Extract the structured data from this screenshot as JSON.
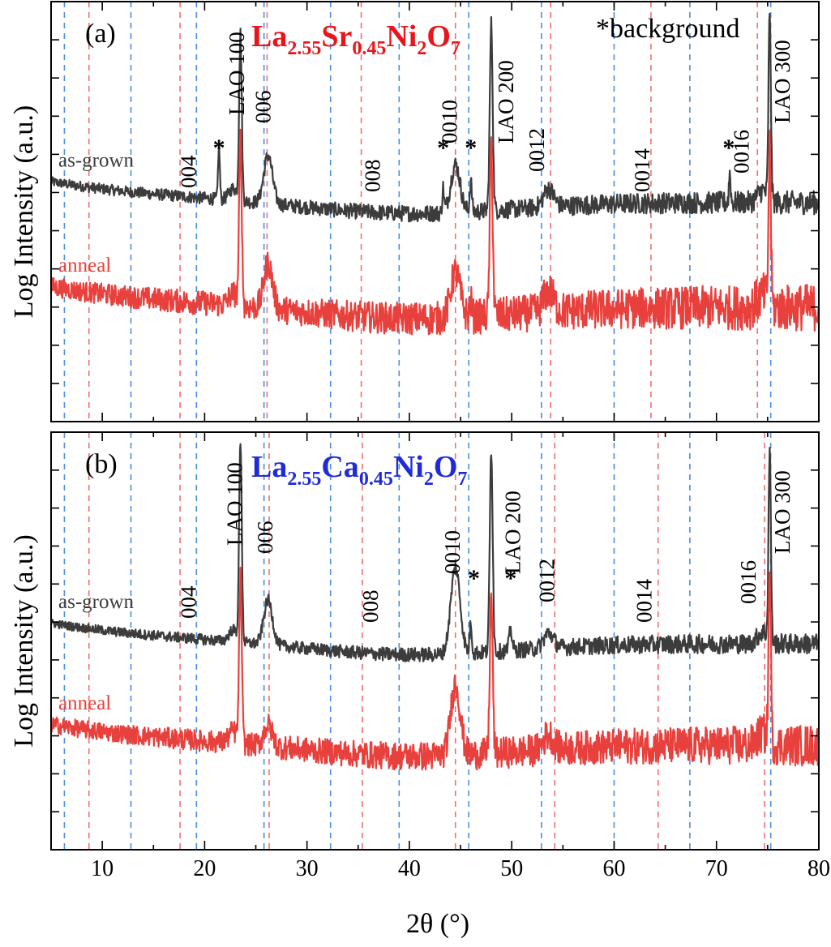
{
  "figure": {
    "xlabel": "2θ (°)",
    "xticks": [
      "10",
      "20",
      "30",
      "40",
      "50",
      "60",
      "70",
      "80"
    ]
  },
  "chart_data": [
    {
      "type": "line",
      "panel": "(a)",
      "title": "La2.55Sr0.45Ni2O7",
      "title_color": "#e8161b",
      "ylabel": "Log Intensity (a.u.)",
      "xlabel": "2θ (°)",
      "xlim": [
        5,
        80
      ],
      "y_scale": "log",
      "grid": false,
      "note": "*background",
      "series": [
        {
          "name": "as-grown",
          "color": "#3c3c3c",
          "baseline": 7.3,
          "amp": {
            "lao100": 5.5,
            "lao200": 6.2,
            "lao300": 6.3,
            "p006": 1.6,
            "p0010": 1.6,
            "p0012": 0.6,
            "bg1": 1.8,
            "bg2": 1.0,
            "bg3": 0.8,
            "bg4": 1.0
          },
          "noise": 0.4
        },
        {
          "name": "anneal",
          "color": "#e8403c",
          "baseline": 3.8,
          "amp": {
            "lao100": 5.5,
            "lao200": 5.6,
            "lao300": 5.2,
            "p006": 1.5,
            "p0010": 1.5,
            "p0012": 0.7,
            "bg2": 0.5
          },
          "noise": 0.8
        }
      ],
      "peak_labels": [
        {
          "text": "LAO 100",
          "x": 23.2
        },
        {
          "text": "006",
          "x": 25.8
        },
        {
          "text": "004",
          "x": 18.5
        },
        {
          "text": "008",
          "x": 36.5
        },
        {
          "text": "0010",
          "x": 44.0
        },
        {
          "text": "LAO 200",
          "x": 49.5
        },
        {
          "text": "0012",
          "x": 52.5
        },
        {
          "text": "0014",
          "x": 62.8
        },
        {
          "text": "0016",
          "x": 72.5
        },
        {
          "text": "LAO 300",
          "x": 76.5
        }
      ],
      "background_markers": [
        21.4,
        43.3,
        46.0,
        71.2
      ],
      "ref_lines_red": [
        8.7,
        17.6,
        26.1,
        35.3,
        44.5,
        53.8,
        63.6,
        74.0
      ],
      "ref_lines_blue": [
        6.3,
        12.8,
        19.2,
        25.8,
        32.3,
        39.0,
        45.8,
        52.9,
        60.0,
        67.4,
        75.3
      ]
    },
    {
      "type": "line",
      "panel": "(b)",
      "title": "La2.55Ca0.45Ni2O7",
      "title_color": "#1f2bd8",
      "ylabel": "Log Intensity (a.u.)",
      "xlabel": "2θ (°)",
      "xlim": [
        5,
        80
      ],
      "y_scale": "log",
      "grid": false,
      "series": [
        {
          "name": "as-grown",
          "color": "#3c3c3c",
          "baseline": 6.9,
          "amp": {
            "lao100": 6.8,
            "lao200": 6.8,
            "lao300": 6.4,
            "p006": 1.5,
            "p0010": 2.9,
            "p0012": 0.5,
            "bg2": 1.0,
            "bg5": 0.7
          },
          "noise": 0.35
        },
        {
          "name": "anneal",
          "color": "#e8403c",
          "baseline": 3.5,
          "amp": {
            "lao100": 5.5,
            "lao200": 5.3,
            "lao300": 5.6,
            "p006": 0.7,
            "p0010": 2.4,
            "p0012": 0.5
          },
          "noise": 0.7
        }
      ],
      "peak_labels": [
        {
          "text": "LAO 100",
          "x": 23.0
        },
        {
          "text": "006",
          "x": 26.0
        },
        {
          "text": "004",
          "x": 18.5
        },
        {
          "text": "008",
          "x": 36.3
        },
        {
          "text": "0010",
          "x": 44.3
        },
        {
          "text": "LAO 200",
          "x": 50.2
        },
        {
          "text": "0012",
          "x": 53.5
        },
        {
          "text": "0014",
          "x": 63.0
        },
        {
          "text": "0016",
          "x": 73.2
        },
        {
          "text": "LAO 300",
          "x": 76.5
        }
      ],
      "background_markers": [
        46.3,
        49.9
      ],
      "ref_lines_red": [
        8.7,
        17.6,
        26.3,
        35.4,
        44.5,
        54.2,
        64.3,
        74.7
      ],
      "ref_lines_blue": [
        6.3,
        12.8,
        19.2,
        25.8,
        32.3,
        39.0,
        45.8,
        52.9,
        60.0,
        67.4,
        75.3
      ]
    }
  ]
}
